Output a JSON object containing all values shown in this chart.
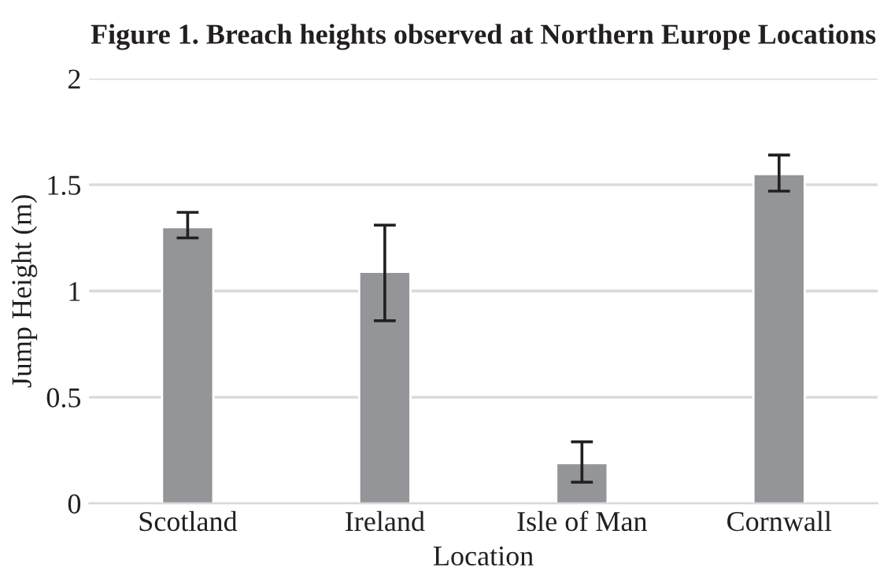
{
  "chart_data": {
    "type": "bar",
    "title": "Figure 1. Breach heights observed at Northern Europe Locations",
    "xlabel": "Location",
    "ylabel": "Jump Height (m)",
    "categories": [
      "Scotland",
      "Ireland",
      "Isle of Man",
      "Cornwall"
    ],
    "values": [
      1.3,
      1.09,
      0.19,
      1.55
    ],
    "errors": [
      [
        1.25,
        1.37
      ],
      [
        0.86,
        1.31
      ],
      [
        0.1,
        0.29
      ],
      [
        1.47,
        1.64
      ]
    ],
    "color": "#939598",
    "ylim": [
      0,
      2
    ],
    "yticks": [
      0,
      0.5,
      1,
      1.5,
      2
    ],
    "grid": "y",
    "legend": false
  }
}
